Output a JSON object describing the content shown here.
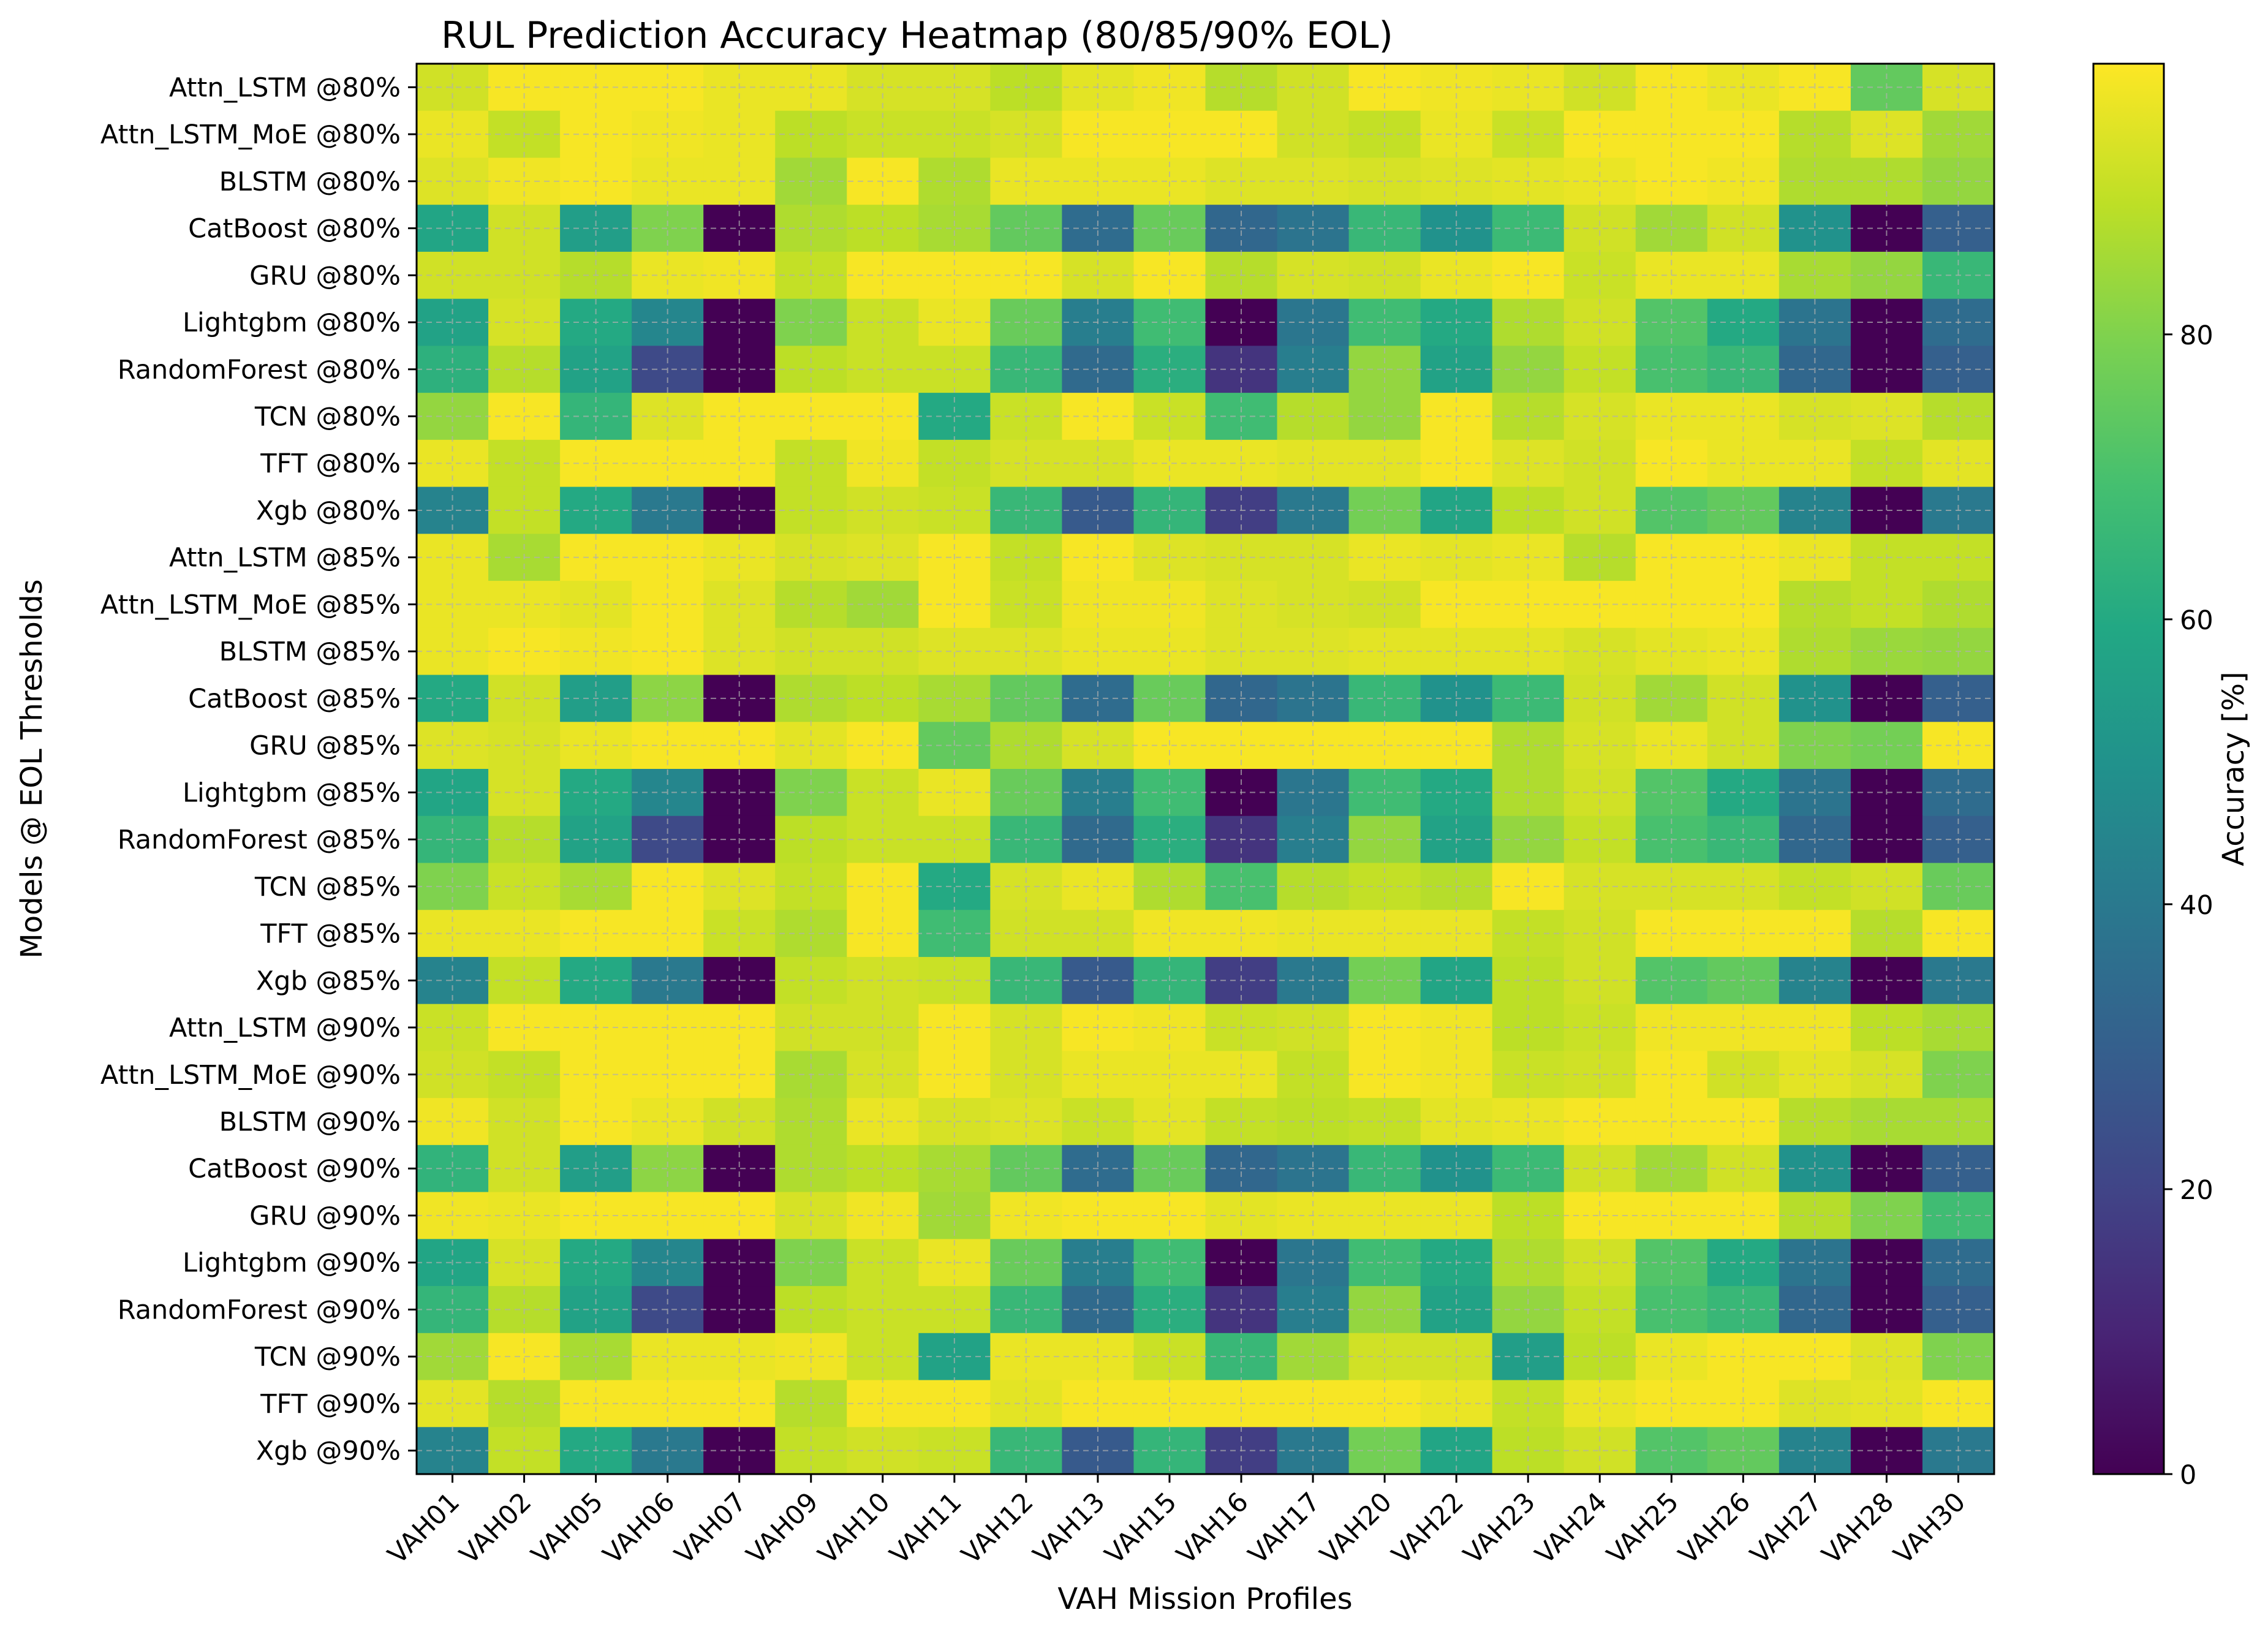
{
  "chart_data": {
    "type": "heatmap",
    "title": "RUL Prediction Accuracy Heatmap (80/85/90% EOL)",
    "xlabel": "VAH Mission Profiles",
    "ylabel": "Models @ EOL Thresholds",
    "colorbar_label": "Accuracy [%]",
    "colormap": "viridis",
    "value_range": [
      0,
      99
    ],
    "colorbar_ticks": [
      0,
      20,
      40,
      60,
      80
    ],
    "grid": true,
    "x": [
      "VAH01",
      "VAH02",
      "VAH05",
      "VAH06",
      "VAH07",
      "VAH09",
      "VAH10",
      "VAH11",
      "VAH12",
      "VAH13",
      "VAH15",
      "VAH16",
      "VAH17",
      "VAH20",
      "VAH22",
      "VAH23",
      "VAH24",
      "VAH25",
      "VAH26",
      "VAH27",
      "VAH28",
      "VAH30"
    ],
    "y": [
      "Attn_LSTM @80%",
      "Attn_LSTM_MoE @80%",
      "BLSTM @80%",
      "CatBoost @80%",
      "GRU @80%",
      "Lightgbm @80%",
      "RandomForest @80%",
      "TCN @80%",
      "TFT @80%",
      "Xgb @80%",
      "Attn_LSTM @85%",
      "Attn_LSTM_MoE @85%",
      "BLSTM @85%",
      "CatBoost @85%",
      "GRU @85%",
      "Lightgbm @85%",
      "RandomForest @85%",
      "TCN @85%",
      "TFT @85%",
      "Xgb @85%",
      "Attn_LSTM @90%",
      "Attn_LSTM_MoE @90%",
      "BLSTM @90%",
      "CatBoost @90%",
      "GRU @90%",
      "Lightgbm @90%",
      "RandomForest @90%",
      "TCN @90%",
      "TFT @90%",
      "Xgb @90%"
    ],
    "values": [
      [
        92,
        98,
        98,
        98,
        96,
        96,
        93,
        93,
        89,
        95,
        97,
        88,
        92,
        98,
        97,
        96,
        92,
        98,
        96,
        98,
        75,
        93
      ],
      [
        96,
        90,
        98,
        97,
        96,
        89,
        91,
        91,
        93,
        98,
        98,
        98,
        92,
        90,
        96,
        91,
        98,
        98,
        98,
        88,
        94,
        85
      ],
      [
        94,
        97,
        98,
        96,
        96,
        85,
        98,
        87,
        96,
        96,
        96,
        94,
        94,
        93,
        94,
        95,
        96,
        98,
        97,
        87,
        87,
        83
      ],
      [
        58,
        92,
        55,
        80,
        0,
        87,
        89,
        86,
        75,
        35,
        76,
        33,
        38,
        66,
        50,
        67,
        92,
        85,
        92,
        50,
        0,
        30
      ],
      [
        92,
        92,
        88,
        96,
        97,
        90,
        98,
        98,
        98,
        93,
        98,
        88,
        93,
        92,
        96,
        98,
        91,
        96,
        96,
        86,
        83,
        66
      ],
      [
        57,
        93,
        60,
        45,
        0,
        80,
        91,
        96,
        76,
        42,
        68,
        0,
        39,
        68,
        60,
        87,
        92,
        72,
        60,
        38,
        0,
        35
      ],
      [
        63,
        88,
        57,
        22,
        0,
        89,
        91,
        91,
        66,
        34,
        62,
        15,
        42,
        83,
        57,
        83,
        90,
        70,
        66,
        33,
        0,
        30
      ],
      [
        83,
        98,
        65,
        94,
        98,
        98,
        98,
        60,
        91,
        98,
        91,
        68,
        88,
        83,
        98,
        88,
        93,
        96,
        96,
        93,
        94,
        88
      ],
      [
        96,
        90,
        98,
        98,
        98,
        90,
        97,
        90,
        93,
        93,
        96,
        96,
        95,
        95,
        98,
        94,
        92,
        98,
        96,
        96,
        90,
        95
      ],
      [
        44,
        90,
        60,
        40,
        0,
        90,
        92,
        91,
        66,
        28,
        65,
        18,
        40,
        78,
        58,
        89,
        92,
        72,
        75,
        44,
        0,
        40
      ],
      [
        96,
        86,
        98,
        98,
        96,
        93,
        94,
        98,
        90,
        98,
        94,
        93,
        93,
        96,
        95,
        96,
        88,
        98,
        98,
        96,
        90,
        90
      ],
      [
        96,
        96,
        95,
        98,
        94,
        88,
        85,
        98,
        91,
        97,
        97,
        94,
        93,
        92,
        98,
        98,
        98,
        98,
        98,
        88,
        90,
        87
      ],
      [
        96,
        98,
        97,
        98,
        94,
        92,
        92,
        94,
        94,
        96,
        96,
        94,
        94,
        95,
        95,
        95,
        93,
        95,
        96,
        87,
        84,
        83
      ],
      [
        60,
        92,
        55,
        82,
        0,
        87,
        89,
        86,
        75,
        35,
        76,
        33,
        38,
        66,
        50,
        67,
        92,
        85,
        92,
        50,
        0,
        30
      ],
      [
        94,
        93,
        96,
        98,
        98,
        95,
        98,
        75,
        87,
        93,
        98,
        98,
        98,
        98,
        98,
        87,
        93,
        96,
        92,
        80,
        78,
        98
      ],
      [
        58,
        93,
        60,
        45,
        0,
        80,
        91,
        96,
        76,
        42,
        68,
        0,
        39,
        68,
        60,
        87,
        92,
        72,
        60,
        38,
        0,
        35
      ],
      [
        65,
        88,
        57,
        22,
        0,
        89,
        91,
        91,
        66,
        34,
        62,
        15,
        42,
        83,
        57,
        83,
        90,
        70,
        66,
        33,
        0,
        30
      ],
      [
        80,
        91,
        86,
        98,
        94,
        90,
        98,
        60,
        93,
        96,
        87,
        70,
        88,
        90,
        88,
        98,
        93,
        93,
        93,
        90,
        92,
        76
      ],
      [
        96,
        96,
        98,
        98,
        91,
        87,
        98,
        68,
        92,
        92,
        97,
        97,
        96,
        96,
        96,
        90,
        92,
        98,
        98,
        98,
        88,
        98
      ],
      [
        44,
        90,
        60,
        40,
        0,
        90,
        92,
        91,
        66,
        28,
        65,
        18,
        40,
        78,
        58,
        89,
        92,
        72,
        75,
        44,
        0,
        40
      ],
      [
        91,
        98,
        98,
        98,
        98,
        92,
        92,
        98,
        93,
        98,
        97,
        91,
        92,
        98,
        97,
        89,
        91,
        97,
        97,
        97,
        89,
        86
      ],
      [
        92,
        90,
        98,
        98,
        98,
        86,
        93,
        98,
        93,
        96,
        96,
        96,
        90,
        98,
        97,
        91,
        92,
        98,
        92,
        95,
        93,
        80
      ],
      [
        97,
        92,
        98,
        96,
        92,
        87,
        96,
        93,
        94,
        91,
        95,
        90,
        89,
        90,
        95,
        96,
        98,
        98,
        98,
        88,
        86,
        86
      ],
      [
        64,
        92,
        55,
        82,
        0,
        87,
        89,
        86,
        75,
        35,
        76,
        33,
        38,
        66,
        50,
        67,
        92,
        85,
        92,
        50,
        0,
        30
      ],
      [
        97,
        96,
        98,
        98,
        98,
        93,
        97,
        85,
        97,
        98,
        98,
        95,
        96,
        96,
        96,
        89,
        98,
        98,
        98,
        88,
        80,
        68
      ],
      [
        58,
        93,
        60,
        45,
        0,
        80,
        91,
        96,
        76,
        42,
        68,
        0,
        39,
        68,
        60,
        87,
        92,
        72,
        60,
        38,
        0,
        35
      ],
      [
        65,
        88,
        57,
        22,
        0,
        89,
        91,
        91,
        66,
        34,
        62,
        15,
        42,
        83,
        57,
        83,
        90,
        70,
        66,
        33,
        0,
        30
      ],
      [
        85,
        98,
        86,
        96,
        96,
        97,
        91,
        57,
        96,
        96,
        91,
        66,
        85,
        92,
        92,
        55,
        89,
        96,
        98,
        98,
        94,
        80
      ],
      [
        95,
        88,
        98,
        98,
        98,
        88,
        98,
        98,
        95,
        98,
        98,
        98,
        98,
        98,
        96,
        90,
        96,
        98,
        98,
        94,
        95,
        98
      ],
      [
        44,
        90,
        60,
        40,
        0,
        90,
        92,
        91,
        66,
        28,
        65,
        18,
        40,
        78,
        58,
        89,
        92,
        72,
        75,
        44,
        0,
        40
      ]
    ]
  }
}
